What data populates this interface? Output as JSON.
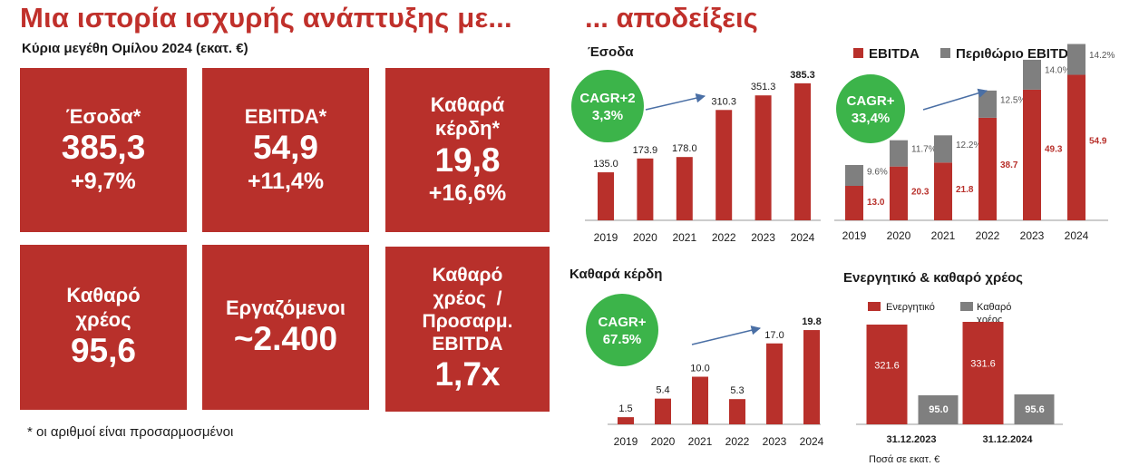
{
  "header": {
    "title_left": "Μια ιστορία ισχυρής ανάπτυξης με...",
    "subtitle_left": "Κύρια μεγέθη Ομίλου 2024 (εκατ. €)",
    "title_right": "... αποδείξεις"
  },
  "kpis": {
    "revenue": {
      "label": "Έσοδα*",
      "value": "385,3",
      "change": "+9,7%"
    },
    "ebitda": {
      "label": "EBITDA*",
      "value": "54,9",
      "change": "+11,4%"
    },
    "net_profit": {
      "label_line1": "Καθαρά",
      "label_line2": "κέρδη*",
      "value": "19,8",
      "change": "+16,6%"
    },
    "net_debt": {
      "label_line1": "Καθαρό",
      "label_line2": "χρέος",
      "value": "95,6"
    },
    "employees": {
      "label": "Εργαζόμενοι",
      "value": "~2.400"
    },
    "ratio": {
      "label_line1": "Καθαρό",
      "label_line2": "χρέος  /",
      "label_line3": "Προσαρμ.",
      "label_line4": "EBITDA",
      "value": "1,7x"
    }
  },
  "footnote": "* οι αριθμοί είναι προσαρμοσμένοι",
  "colors": {
    "red": "#b8302b",
    "gray": "#7f7f7f",
    "green": "#3cb44a",
    "arrow": "#4a6fa5"
  },
  "chart_data": [
    {
      "id": "revenue",
      "type": "bar",
      "title": "Έσοδα",
      "categories": [
        "2019",
        "2020",
        "2021",
        "2022",
        "2023",
        "2024"
      ],
      "values": [
        135.0,
        173.9,
        178.0,
        310.3,
        351.3,
        385.3
      ],
      "labels": [
        "135.0",
        "173.9",
        "178.0",
        "310.3",
        "351.3",
        "385.3"
      ],
      "ylim": [
        0,
        400
      ],
      "badge": {
        "line1": "CAGR+2",
        "line2": "3,3%"
      }
    },
    {
      "id": "ebitda",
      "type": "bar",
      "title": "",
      "legend": [
        "EBITDA",
        "Περιθώριο EBITDA"
      ],
      "categories": [
        "2019",
        "2020",
        "2021",
        "2022",
        "2023",
        "2024"
      ],
      "values": [
        13.0,
        20.3,
        21.8,
        38.7,
        49.3,
        54.9
      ],
      "labels": [
        "13.0",
        "20.3",
        "21.8",
        "38.7",
        "49.3",
        "54.9"
      ],
      "margins": [
        9.6,
        11.7,
        12.2,
        12.5,
        14.0,
        14.2
      ],
      "margin_labels": [
        "9.6%",
        "11.7%",
        "12.2%",
        "12.5%",
        "14.0%",
        "14.2%"
      ],
      "ylim": [
        0,
        65
      ],
      "badge": {
        "line1": "CAGR+",
        "line2": "33,4%"
      }
    },
    {
      "id": "net_profit",
      "type": "bar",
      "title": "Καθαρά κέρδη",
      "categories": [
        "2019",
        "2020",
        "2021",
        "2022",
        "2023",
        "2024"
      ],
      "values": [
        1.5,
        5.4,
        10.0,
        5.3,
        17.0,
        19.8
      ],
      "labels": [
        "1.5",
        "5.4",
        "10.0",
        "5.3",
        "17.0",
        "19.8"
      ],
      "ylim": [
        0,
        22
      ],
      "badge": {
        "line1": "CAGR+",
        "line2": "67.5%"
      }
    },
    {
      "id": "assets_debt",
      "type": "bar",
      "title": "Ενεργητικό & καθαρό χρέος",
      "legend": [
        "Ενεργητικό",
        "Καθαρό χρέος"
      ],
      "categories": [
        "31.12.2023",
        "31.12.2024"
      ],
      "series": [
        {
          "name": "Ενεργητικό",
          "values": [
            321.6,
            331.6
          ],
          "labels": [
            "321.6",
            "331.6"
          ]
        },
        {
          "name": "Καθαρό χρέος",
          "values": [
            95.0,
            95.6
          ],
          "labels": [
            "95.0",
            "95.6"
          ]
        }
      ],
      "ylim": [
        0,
        340
      ],
      "note": "Ποσά σε εκατ. €"
    }
  ]
}
